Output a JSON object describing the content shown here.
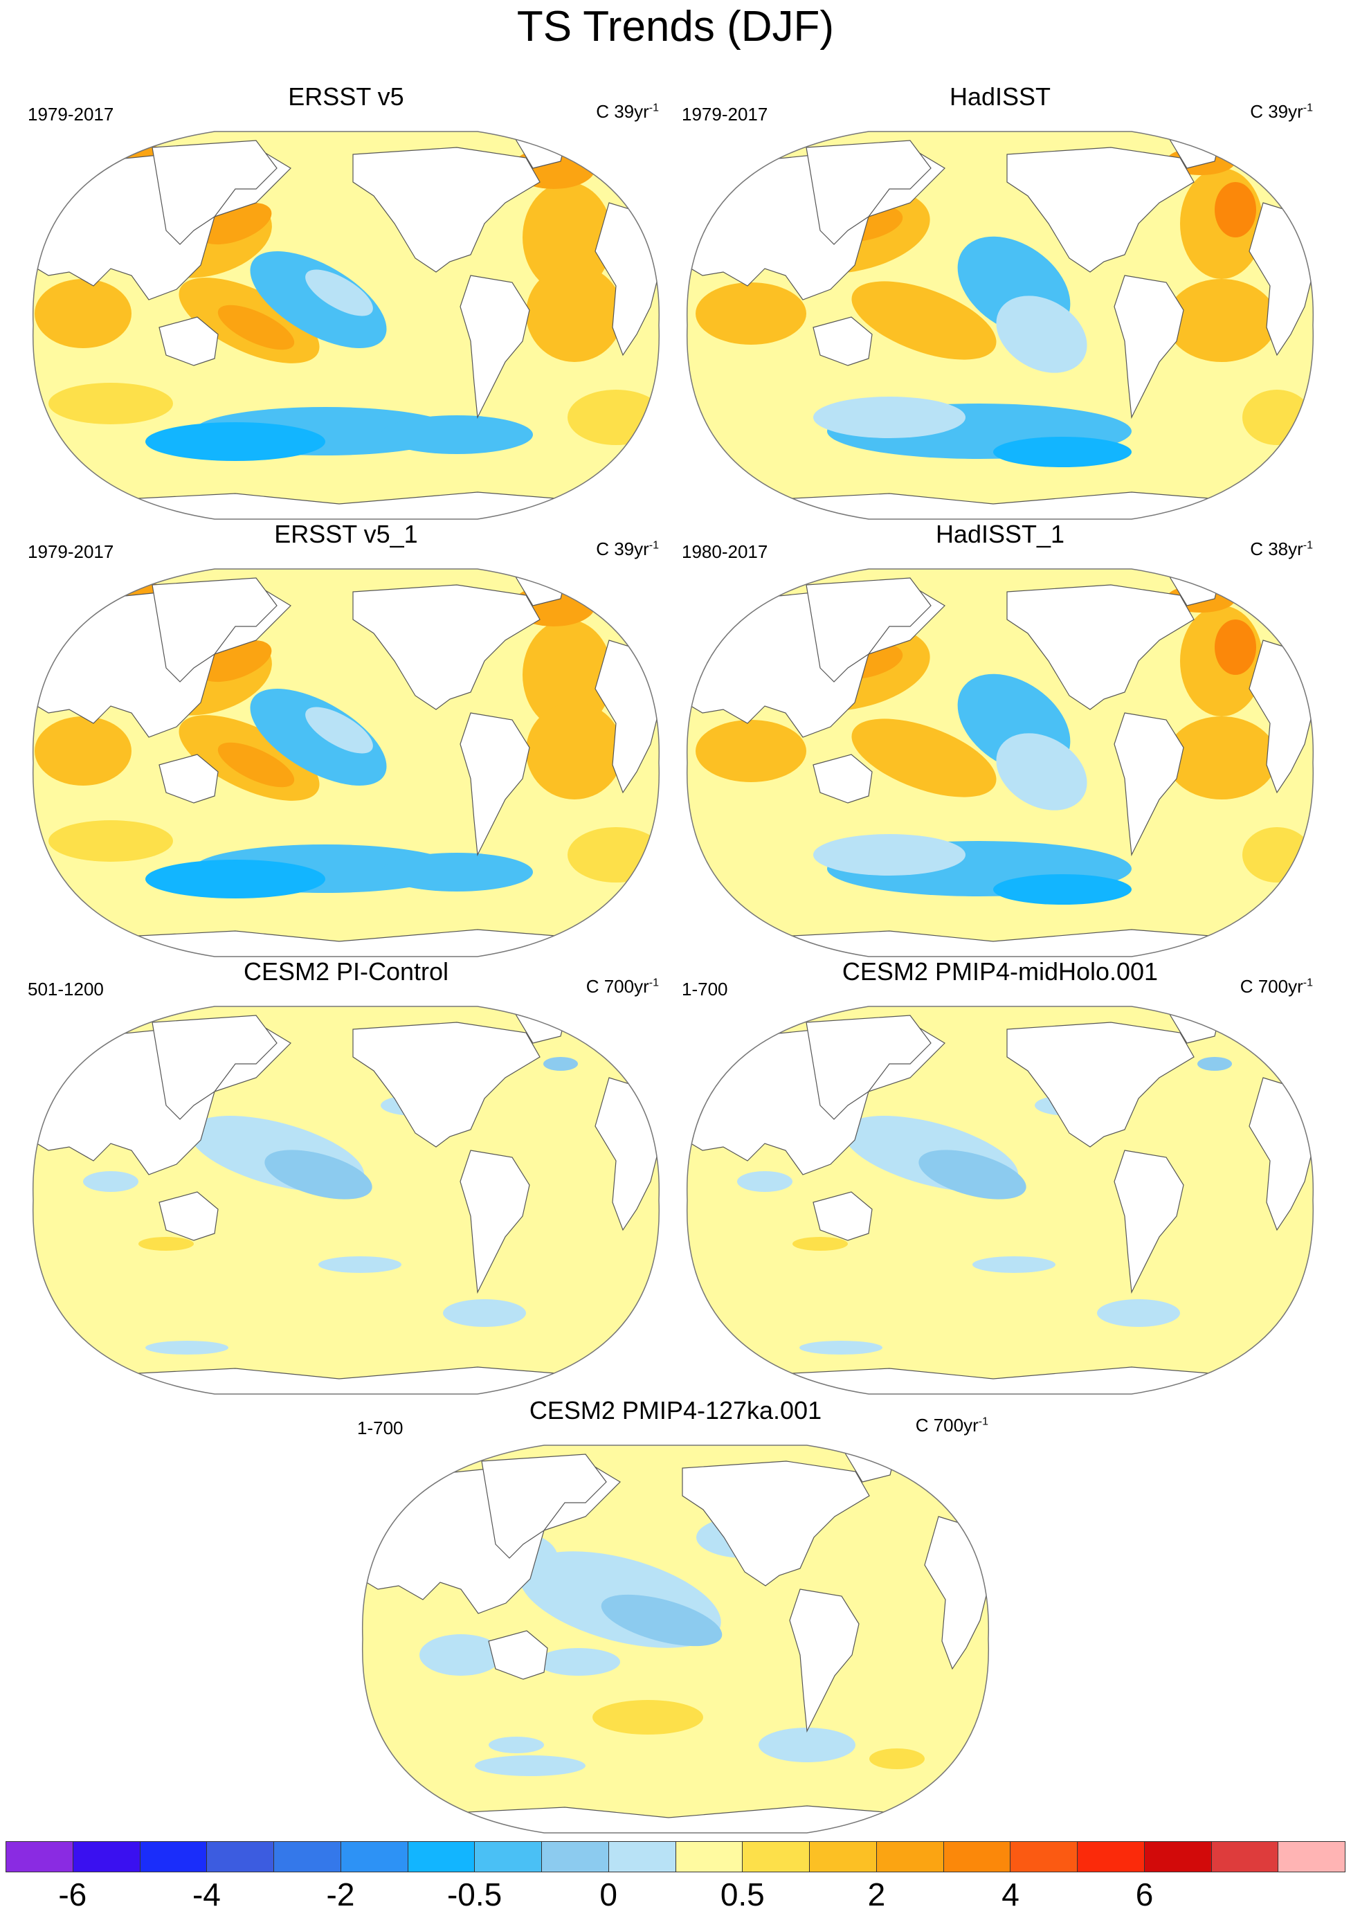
{
  "title": "TS Trends (DJF)",
  "panels": [
    {
      "title": "ERSST v5",
      "period": "1979-2017",
      "units": "C 39yr",
      "units_exp": "-1",
      "variant": "obs-ersst"
    },
    {
      "title": "HadISST",
      "period": "1979-2017",
      "units": "C 39yr",
      "units_exp": "-1",
      "variant": "obs-had"
    },
    {
      "title": "ERSST v5_1",
      "period": "1979-2017",
      "units": "C 39yr",
      "units_exp": "-1",
      "variant": "obs-ersst"
    },
    {
      "title": "HadISST_1",
      "period": "1980-2017",
      "units": "C 38yr",
      "units_exp": "-1",
      "variant": "obs-had"
    },
    {
      "title": "CESM2 PI-Control",
      "period": "501-1200",
      "units": "C 700yr",
      "units_exp": "-1",
      "variant": "model"
    },
    {
      "title": "CESM2 PMIP4-midHolo.001",
      "period": "1-700",
      "units": "C 700yr",
      "units_exp": "-1",
      "variant": "model"
    },
    {
      "title": "CESM2 PMIP4-127ka.001",
      "period": "1-700",
      "units": "C 700yr",
      "units_exp": "-1",
      "variant": "model127"
    }
  ],
  "colorbar": {
    "colors": [
      "#8a2be2",
      "#3a10f0",
      "#1a2dfa",
      "#3c5ce0",
      "#3478ea",
      "#2d92f5",
      "#12b5ff",
      "#4ac0f5",
      "#8ccbef",
      "#b8e2f6",
      "#fffaa0",
      "#fde04a",
      "#fcc024",
      "#fba412",
      "#fb880a",
      "#fb5a12",
      "#fb2a0a",
      "#d20a0a",
      "#de3c3c",
      "#ffb4b4"
    ],
    "labels": [
      "-6",
      "-4",
      "-2",
      "-0.5",
      "0",
      "0.5",
      "2",
      "4",
      "6"
    ]
  },
  "chart_data": {
    "type": "heatmap",
    "title": "TS Trends (DJF)",
    "projection": "Robinson (Pacific-centered)",
    "variable": "surface temperature trend, December-January-February",
    "panel_titles": [
      "ERSST v5",
      "HadISST",
      "ERSST v5_1",
      "HadISST_1",
      "CESM2 PI-Control",
      "CESM2 PMIP4-midHolo.001",
      "CESM2 PMIP4-127ka.001"
    ],
    "colorbar_tick_labels": [
      "-6",
      "-4",
      "-2",
      "-0.5",
      "0",
      "0.5",
      "2",
      "4",
      "6"
    ],
    "units": "C per record length"
  }
}
